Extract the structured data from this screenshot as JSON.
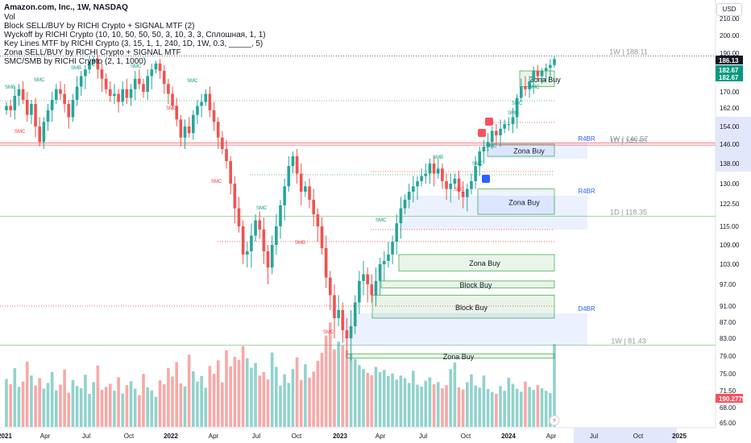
{
  "header": {
    "title": "Amazon.com, Inc., 1W, NASDAQ",
    "indicators": [
      "Vol",
      "Block SELL/BUY by RICHI Crypto + SIGNAL MTF (2)",
      "Wyckoff by RICHI Crypto  (10, 10, 50, 50, 50, 3, 10, 3, 3, Сплошная, 1, 1)",
      "Key Lines MTF by RICHI Crypto (3, 15, 1, 1, 240, 1D, 1W, 0.3, _____, 5)",
      "Zona SELL/BUY by RICHI Crypto + SIGNAL MTF",
      "SMC/SMB by RICHI Crypto (2, 1, 1000)"
    ],
    "currency": "USD"
  },
  "chart_data": {
    "type": "candlestick",
    "symbol": "AMZN",
    "interval": "1W",
    "y_ticks": [
      210.0,
      200.0,
      190.0,
      178.0,
      170.0,
      162.0,
      154.0,
      146.0,
      138.0,
      130.0,
      122.5,
      115.0,
      109.0,
      103.0,
      97.0,
      91.0,
      87.0,
      83.0,
      79.0,
      75.0,
      71.5,
      68.0,
      65.0
    ],
    "x_ticks": [
      "2021",
      "Apr",
      "Jul",
      "Oct",
      "2022",
      "Apr",
      "Jul",
      "Oct",
      "2023",
      "Apr",
      "Jul",
      "Oct",
      "2024",
      "Apr",
      "Jul",
      "Oct",
      "2025"
    ],
    "price_labels": [
      {
        "value": "186.13",
        "color": "#131722"
      },
      {
        "value": "182.67",
        "color": "#089981"
      },
      {
        "value": "182.67",
        "color": "#089981"
      },
      {
        "value": "190.277M",
        "color": "#f7525f"
      }
    ],
    "closes": [
      163,
      161,
      168,
      171,
      166,
      159,
      164,
      154,
      147,
      156,
      161,
      166,
      171,
      169,
      164,
      158,
      166,
      172,
      176,
      179,
      184,
      186,
      179,
      175,
      171,
      168,
      169,
      165,
      171,
      167,
      171,
      175,
      173,
      170,
      176,
      179,
      183,
      178,
      173,
      169,
      163,
      157,
      149,
      154,
      151,
      159,
      163,
      165,
      169,
      161,
      156,
      149,
      144,
      139,
      130,
      121,
      115,
      106,
      107,
      112,
      117,
      114,
      107,
      102,
      109,
      115,
      122,
      129,
      137,
      141,
      134,
      127,
      129,
      124,
      119,
      115,
      108,
      99,
      94,
      88,
      90,
      85,
      83,
      86,
      92,
      98,
      100,
      97,
      94,
      98,
      103,
      104,
      106,
      110,
      116,
      121,
      124,
      127,
      129,
      131,
      133,
      134,
      138,
      134,
      136,
      131,
      128,
      130,
      132,
      127,
      125,
      128,
      131,
      137,
      143,
      145,
      147,
      152,
      150,
      153,
      155,
      155,
      158,
      167,
      172,
      171,
      174,
      178,
      176,
      178,
      180,
      182,
      186
    ],
    "volumes_M": [
      110,
      98,
      135,
      92,
      104,
      150,
      118,
      95,
      112,
      88,
      101,
      126,
      84,
      97,
      132,
      79,
      108,
      94,
      89,
      120,
      76,
      103,
      141,
      85,
      92,
      99,
      83,
      114,
      77,
      96,
      105,
      88,
      73,
      122,
      91,
      84,
      69,
      107,
      98,
      135,
      116,
      149,
      100,
      93,
      166,
      128,
      104,
      117,
      90,
      140,
      122,
      153,
      102,
      176,
      139,
      161,
      154,
      186,
      158,
      136,
      147,
      118,
      126,
      109,
      171,
      138,
      95,
      121,
      101,
      133,
      160,
      108,
      144,
      113,
      127,
      152,
      170,
      210,
      240,
      178,
      196,
      187,
      176,
      169,
      156,
      142,
      133,
      124,
      119,
      138,
      126,
      131,
      117,
      123,
      109,
      118,
      112,
      101,
      129,
      97,
      93,
      106,
      114,
      98,
      103,
      89,
      96,
      133,
      148,
      91,
      86,
      103,
      121,
      95,
      90,
      118,
      87,
      80,
      76,
      94,
      83,
      113,
      99,
      88,
      81,
      104,
      92,
      85,
      96,
      89,
      83,
      78,
      190.277
    ],
    "horizontal_levels": [
      {
        "label": "1W | 188.11",
        "value": 188.11
      },
      {
        "label": "1W | 146.57",
        "value": 146.57
      },
      {
        "label": "1D | 145.65",
        "value": 145.65
      },
      {
        "label": "1D | 118.35",
        "value": 118.35
      },
      {
        "label": "1W | 81.43",
        "value": 81.43
      }
    ],
    "zones": [
      {
        "label": "Zona Buy",
        "top": 178,
        "bottom": 172
      },
      {
        "label": "Zona Buy",
        "top": 146,
        "bottom": 141
      },
      {
        "label": "Zona Buy",
        "top": 128,
        "bottom": 119
      },
      {
        "label": "Zona Buy",
        "top": 106,
        "bottom": 101
      },
      {
        "label": "Block Buy",
        "top": 98,
        "bottom": 96
      },
      {
        "label": "Block Buy",
        "top": 94,
        "bottom": 88
      },
      {
        "label": "Zona Buy",
        "top": 79.5,
        "bottom": 78.5
      }
    ],
    "region_labels": [
      "R4BR",
      "R4BR",
      "D4BR"
    ],
    "smc_labels": [
      "SMB",
      "SMC",
      "SMC",
      "SMB",
      "SMC",
      "SMC",
      "SMC",
      "SMC",
      "SMC",
      "SMB",
      "SMC",
      "SMC",
      "SMB",
      "SMC",
      "SMB",
      "SMC",
      "SMC",
      "SMC",
      "SMC"
    ],
    "grid": false
  }
}
